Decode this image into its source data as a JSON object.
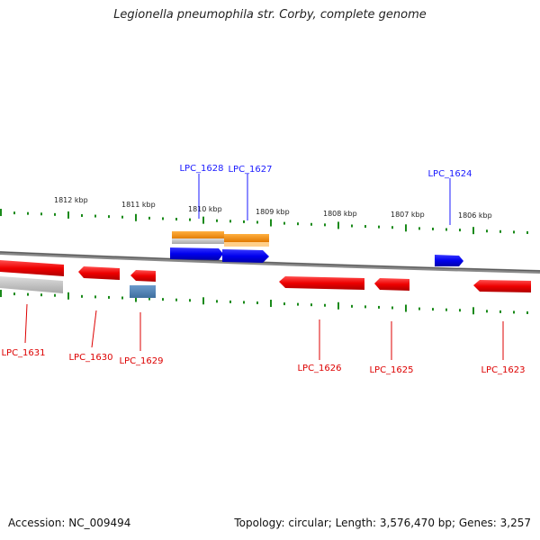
{
  "title": "Legionella pneumophila str. Corby, complete genome",
  "footer": {
    "accession": "Accession: NC_009494",
    "summary": "Topology: circular; Length: 3,576,470 bp; Genes: 3,257"
  },
  "scale_labels": [
    "1812 kbp",
    "1811 kbp",
    "1810 kbp",
    "1809 kbp",
    "1808 kbp",
    "1807 kbp",
    "1806 kbp"
  ],
  "genes_top": [
    {
      "label": "LPC_1628",
      "color": "#1a1aff"
    },
    {
      "label": "LPC_1627",
      "color": "#1a1aff"
    },
    {
      "label": "LPC_1624",
      "color": "#1a1aff"
    }
  ],
  "genes_bottom": [
    {
      "label": "LPC_1631",
      "color": "#dd0000"
    },
    {
      "label": "LPC_1630",
      "color": "#dd0000"
    },
    {
      "label": "LPC_1629",
      "color": "#dd0000"
    },
    {
      "label": "LPC_1626",
      "color": "#dd0000"
    },
    {
      "label": "LPC_1625",
      "color": "#dd0000"
    },
    {
      "label": "LPC_1623",
      "color": "#dd0000"
    }
  ],
  "colors": {
    "forward_cds": "#0000ee",
    "reverse_cds": "#ee0000",
    "gene": "#ff8800",
    "rna": "#4f86b8",
    "tick": "#1a8a1a",
    "backbone": "#777777"
  }
}
